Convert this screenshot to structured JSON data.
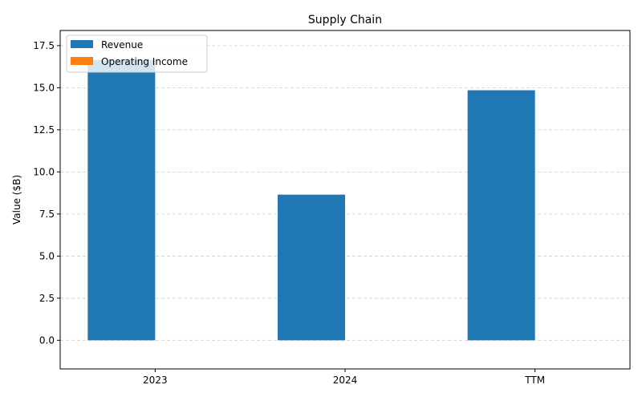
{
  "chart_data": {
    "type": "bar",
    "title": "Supply Chain",
    "xlabel": "",
    "ylabel": "Value ($B)",
    "categories": [
      "2023",
      "2024",
      "TTM"
    ],
    "series": [
      {
        "name": "Revenue",
        "color": "#1f77b4",
        "values": [
          16.65,
          8.65,
          14.85
        ]
      },
      {
        "name": "Operating Income",
        "color": "#ff7f0e",
        "values": [
          0,
          0,
          0
        ]
      }
    ],
    "ylim": [
      -1.7,
      18.4
    ],
    "yticks": [
      0.0,
      2.5,
      5.0,
      7.5,
      10.0,
      12.5,
      15.0,
      17.5
    ],
    "ytick_labels": [
      "0.0",
      "2.5",
      "5.0",
      "7.5",
      "10.0",
      "12.5",
      "15.0",
      "17.5"
    ],
    "grid": "y-dashed",
    "legend": "top-left"
  }
}
